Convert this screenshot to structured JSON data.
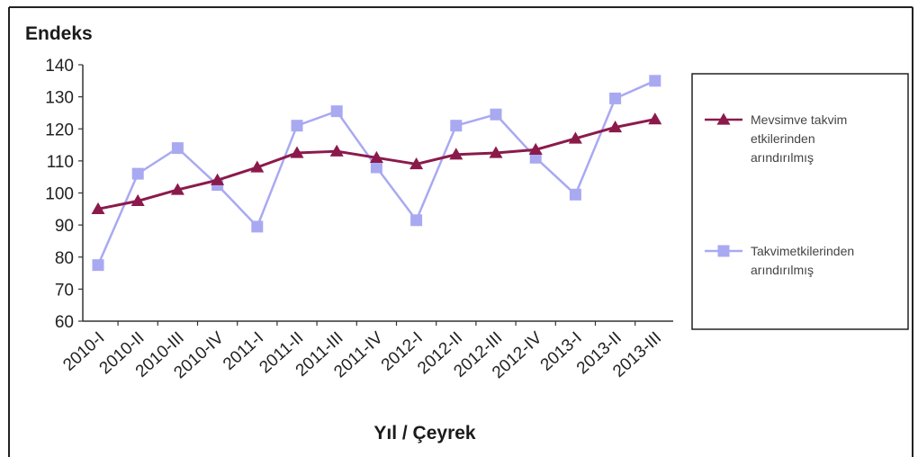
{
  "chart_data": {
    "type": "line",
    "title": "",
    "ylabel": "Endeks",
    "xlabel": "Yıl / Çeyrek",
    "ylim": [
      60,
      140
    ],
    "yticks": [
      60,
      70,
      80,
      90,
      100,
      110,
      120,
      130,
      140
    ],
    "categories": [
      "2010-I",
      "2010-II",
      "2010-III",
      "2010-IV",
      "2011-I",
      "2011-II",
      "2011-III",
      "2011-IV",
      "2012-I",
      "2012-II",
      "2012-III",
      "2012-IV",
      "2013-I",
      "2013-II",
      "2013-III"
    ],
    "grid": false,
    "legend_position": "right",
    "series": [
      {
        "name": "Mevsim ve takvim etkilerinden arındırılmış",
        "legend_lines": [
          "Mevsimve takvim",
          "etkilerinden",
          "arındırılmış"
        ],
        "marker": "triangle",
        "color": "#8b1a4b",
        "values": [
          95,
          97.5,
          101,
          104,
          108,
          112.5,
          113,
          111,
          109,
          112,
          112.5,
          113.5,
          117,
          120.5,
          123
        ]
      },
      {
        "name": "Takvim etkilerinden arındırılmış",
        "legend_lines": [
          "Takvimetkilerinden",
          "arındırılmış"
        ],
        "marker": "square",
        "color": "#a9a9f2",
        "values": [
          77.5,
          106,
          114,
          102.5,
          89.5,
          121,
          125.5,
          108,
          91.5,
          121,
          124.5,
          111,
          99.5,
          129.5,
          135
        ]
      }
    ]
  }
}
